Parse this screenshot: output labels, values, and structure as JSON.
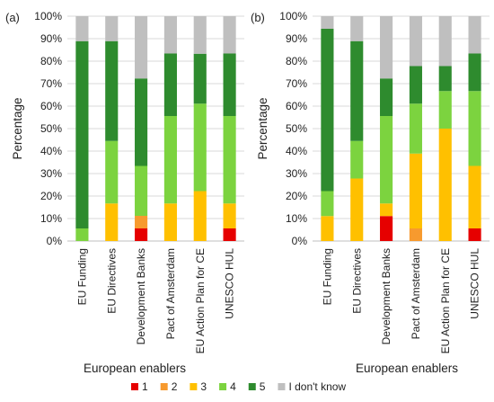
{
  "series_colors": {
    "1": "#e60000",
    "2": "#f79a2e",
    "3": "#ffc000",
    "4": "#7cd33f",
    "5": "#2e8b2e",
    "I don't know": "#bfbfbf"
  },
  "legend": [
    "1",
    "2",
    "3",
    "4",
    "5",
    "I don't know"
  ],
  "chart_data": [
    {
      "type": "bar",
      "stacked": true,
      "panel_label": "(a)",
      "title": "",
      "xlabel": "European enablers",
      "ylabel": "Percentage",
      "ylim": [
        0,
        100
      ],
      "yticks": [
        "0%",
        "10%",
        "20%",
        "30%",
        "40%",
        "50%",
        "60%",
        "70%",
        "80%",
        "90%",
        "100%"
      ],
      "categories": [
        "EU Funding",
        "EU Directives",
        "Development Banks",
        "Pact of Amsterdam",
        "EU Action Plan for CE",
        "UNESCO HUL"
      ],
      "series": [
        {
          "name": "1",
          "values": [
            0,
            0,
            5.6,
            0,
            0,
            5.6
          ]
        },
        {
          "name": "2",
          "values": [
            0,
            0,
            5.6,
            0,
            0,
            0
          ]
        },
        {
          "name": "3",
          "values": [
            0,
            16.7,
            0,
            16.7,
            22.2,
            11.1
          ]
        },
        {
          "name": "4",
          "values": [
            5.6,
            27.8,
            22.2,
            38.9,
            38.9,
            38.9
          ]
        },
        {
          "name": "5",
          "values": [
            83.3,
            44.4,
            38.9,
            27.8,
            22.2,
            27.8
          ]
        },
        {
          "name": "I don't know",
          "values": [
            11.1,
            11.1,
            27.7,
            16.6,
            16.7,
            16.6
          ]
        }
      ],
      "grid": true,
      "legend_position": "bottom"
    },
    {
      "type": "bar",
      "stacked": true,
      "panel_label": "(b)",
      "title": "",
      "xlabel": "European enablers",
      "ylabel": "Percentage",
      "ylim": [
        0,
        100
      ],
      "yticks": [
        "0%",
        "10%",
        "20%",
        "30%",
        "40%",
        "50%",
        "60%",
        "70%",
        "80%",
        "90%",
        "100%"
      ],
      "categories": [
        "EU Funding",
        "EU Directives",
        "Development Banks",
        "Pact of Amsterdam",
        "EU Action Plan for CE",
        "UNESCO HUL"
      ],
      "series": [
        {
          "name": "1",
          "values": [
            0,
            0,
            11.1,
            0,
            0,
            5.6
          ]
        },
        {
          "name": "2",
          "values": [
            0,
            0,
            0,
            5.6,
            0,
            0
          ]
        },
        {
          "name": "3",
          "values": [
            11.1,
            27.8,
            5.6,
            33.3,
            50,
            27.8
          ]
        },
        {
          "name": "4",
          "values": [
            11.1,
            16.7,
            38.9,
            22.2,
            16.7,
            33.3
          ]
        },
        {
          "name": "5",
          "values": [
            72.2,
            44.4,
            16.7,
            16.7,
            11.1,
            16.7
          ]
        },
        {
          "name": "I don't know",
          "values": [
            5.6,
            11.1,
            27.7,
            22.2,
            22.2,
            16.6
          ]
        }
      ],
      "grid": true,
      "legend_position": "bottom"
    }
  ]
}
